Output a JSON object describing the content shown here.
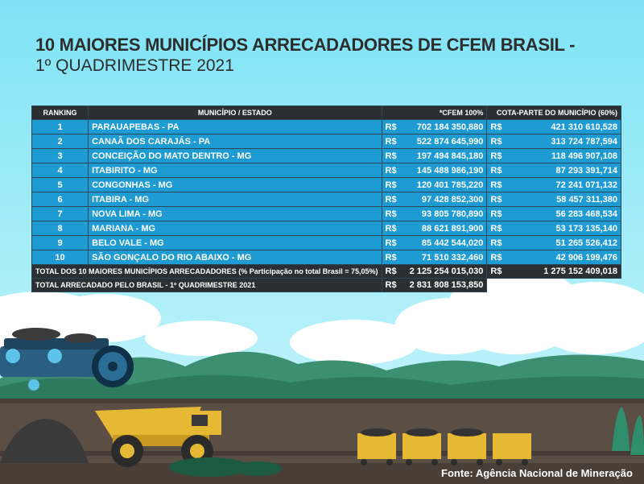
{
  "title": {
    "line1": "10 MAIORES MUNICÍPIOS ARRECADADORES  DE CFEM BRASIL -",
    "line2": "1º QUADRIMESTRE 2021"
  },
  "table": {
    "headers": {
      "ranking": "RANKING",
      "municipio": "MUNICÍPIO / ESTADO",
      "cfem": "*CFEM 100%",
      "cota": "COTA-PARTE DO MUNICÍPIO (60%)"
    },
    "currency": "R$",
    "rows": [
      {
        "rank": "1",
        "municipio": "PARAUAPEBAS - PA",
        "cfem": "702 184 350,880",
        "cota": "421 310 610,528"
      },
      {
        "rank": "2",
        "municipio": "CANAÃ DOS CARAJÁS - PA",
        "cfem": "522 874 645,990",
        "cota": "313 724 787,594"
      },
      {
        "rank": "3",
        "municipio": "CONCEIÇÃO DO MATO DENTRO - MG",
        "cfem": "197 494 845,180",
        "cota": "118 496 907,108"
      },
      {
        "rank": "4",
        "municipio": "ITABIRITO - MG",
        "cfem": "145 488 986,190",
        "cota": "87 293 391,714"
      },
      {
        "rank": "5",
        "municipio": "CONGONHAS - MG",
        "cfem": "120 401 785,220",
        "cota": "72 241 071,132"
      },
      {
        "rank": "6",
        "municipio": "ITABIRA - MG",
        "cfem": "97 428 852,300",
        "cota": "58 457 311,380"
      },
      {
        "rank": "7",
        "municipio": "NOVA LIMA - MG",
        "cfem": "93 805 780,890",
        "cota": "56 283 468,534"
      },
      {
        "rank": "8",
        "municipio": "MARIANA - MG",
        "cfem": "88 621 891,900",
        "cota": "53 173 135,140"
      },
      {
        "rank": "9",
        "municipio": "BELO VALE - MG",
        "cfem": "85 442 544,020",
        "cota": "51 265 526,412"
      },
      {
        "rank": "10",
        "municipio": "SÃO GONÇALO DO RIO ABAIXO - MG",
        "cfem": "71 510 332,460",
        "cota": "42 906 199,476"
      }
    ],
    "total_top10": {
      "label": "TOTAL DOS 10 MAIORES MUNICÍPIOS ARRECADADORES (% Participação no total Brasil = 75,05%)",
      "cfem": "2 125 254 015,030",
      "cota": "1 275 152 409,018"
    },
    "total_brasil": {
      "label": "TOTAL ARRECADADO PELO BRASIL - 1º QUADRIMESTRE 2021",
      "cfem": "2 831 808 153,850"
    }
  },
  "source": "Fonte: Agência Nacional de Mineração"
}
